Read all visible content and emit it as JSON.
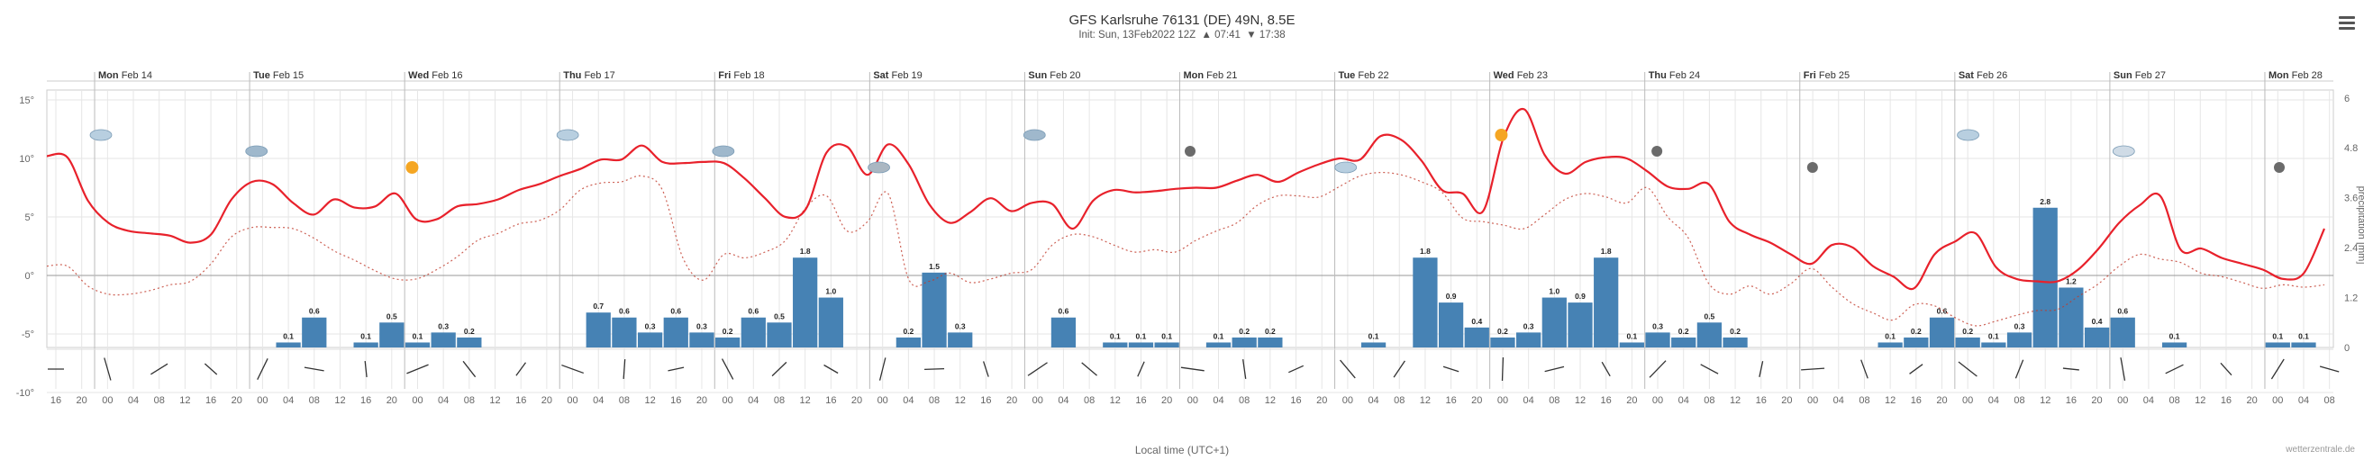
{
  "header": {
    "title": "GFS Karlsruhe 76131 (DE) 49N, 8.5E",
    "init": "Init: Sun, 13Feb2022 12Z",
    "sunrise": "07:41",
    "sunset": "17:38"
  },
  "footer": {
    "xlabel": "Local time (UTC+1)",
    "credit": "wetterzentrale.de"
  },
  "colors": {
    "temperature": "#e8212b",
    "temperature_below_zero": "#2f9bd6",
    "dewpoint": "#c0392b",
    "dewpoint_below_zero": "#6fa8dc",
    "precipitation": "#4682b4",
    "grid": "#e6e6e6"
  },
  "chart_data": {
    "type": "line",
    "days": [
      {
        "label": "Mon",
        "date": "Feb 14"
      },
      {
        "label": "Tue",
        "date": "Feb 15"
      },
      {
        "label": "Wed",
        "date": "Feb 16"
      },
      {
        "label": "Thu",
        "date": "Feb 17"
      },
      {
        "label": "Fri",
        "date": "Feb 18"
      },
      {
        "label": "Sat",
        "date": "Feb 19"
      },
      {
        "label": "Sun",
        "date": "Feb 20"
      },
      {
        "label": "Mon",
        "date": "Feb 21"
      },
      {
        "label": "Tue",
        "date": "Feb 22"
      },
      {
        "label": "Wed",
        "date": "Feb 23"
      },
      {
        "label": "Thu",
        "date": "Feb 24"
      },
      {
        "label": "Fri",
        "date": "Feb 25"
      },
      {
        "label": "Sat",
        "date": "Feb 26"
      },
      {
        "label": "Sun",
        "date": "Feb 27"
      },
      {
        "label": "Mon",
        "date": "Feb 28"
      }
    ],
    "hour_ticks": [
      "16",
      "20",
      "00",
      "04",
      "08",
      "12",
      "16",
      "20",
      "00",
      "04",
      "08",
      "12",
      "16",
      "20",
      "00",
      "04",
      "08",
      "12",
      "16",
      "20",
      "00",
      "04",
      "08",
      "12",
      "16",
      "20",
      "00",
      "04",
      "08",
      "12",
      "16",
      "20",
      "00",
      "04",
      "08",
      "12",
      "16",
      "20",
      "00",
      "04",
      "08",
      "12",
      "16",
      "20",
      "00",
      "04",
      "08",
      "12",
      "16",
      "20",
      "00",
      "04",
      "08",
      "12",
      "16",
      "20",
      "00",
      "04",
      "08",
      "12",
      "16",
      "20",
      "00",
      "04",
      "08",
      "12",
      "16",
      "20",
      "00",
      "04",
      "08",
      "12",
      "16",
      "20",
      "00",
      "04",
      "08",
      "12",
      "16",
      "20",
      "00",
      "04",
      "08",
      "12",
      "16",
      "20",
      "00",
      "04",
      "08"
    ],
    "y_left": {
      "ticks": [
        15,
        10,
        5,
        0,
        -5,
        -10
      ],
      "labels": [
        "15°",
        "10°",
        "5°",
        "0°",
        "-5°",
        "-10°"
      ],
      "range": [
        -10,
        15
      ]
    },
    "y_right": {
      "label": "precipitation [mm]",
      "ticks": [
        6,
        4.8,
        3.6,
        2.4,
        1.2,
        0
      ],
      "labels": [
        "6",
        "4.8",
        "3.6",
        "2.4",
        "1.2",
        "0"
      ]
    },
    "grid": true,
    "temperature": [
      10.2,
      10.1,
      6.4,
      4.5,
      3.8,
      3.6,
      3.4,
      2.8,
      3.5,
      6.5,
      8.0,
      7.8,
      6.2,
      5.2,
      6.5,
      5.8,
      5.9,
      7.0,
      4.8,
      4.8,
      5.9,
      6.1,
      6.5,
      7.3,
      7.8,
      8.5,
      9.1,
      9.9,
      9.9,
      11.1,
      9.7,
      9.6,
      9.7,
      9.6,
      8.3,
      6.6,
      5.0,
      5.7,
      10.5,
      11.0,
      8.6,
      11.2,
      9.5,
      6.1,
      4.5,
      5.4,
      6.6,
      5.5,
      6.2,
      6.1,
      4.0,
      6.4,
      7.3,
      7.1,
      7.2,
      7.4,
      7.5,
      7.5,
      8.1,
      8.6,
      8.0,
      8.8,
      9.5,
      10.0,
      9.9,
      11.9,
      11.6,
      9.8,
      7.3,
      7.0,
      5.5,
      11.8,
      14.2,
      10.3,
      8.7,
      9.7,
      10.1,
      10.0,
      8.9,
      7.6,
      7.4,
      7.8,
      4.6,
      3.5,
      2.8,
      1.8,
      1.0,
      2.6,
      2.4,
      0.8,
      -0.1,
      -1.1,
      1.8,
      2.9,
      3.6,
      0.7,
      -0.3,
      -0.5,
      -0.5,
      0.5,
      2.3,
      4.5,
      6.0,
      6.8,
      2.2,
      2.3,
      1.5,
      1.0,
      0.5,
      -0.3,
      0.2,
      4.0
    ],
    "dewpoint": [
      0.8,
      0.8,
      -0.9,
      -1.6,
      -1.6,
      -1.3,
      -0.8,
      -0.5,
      1.0,
      3.3,
      4.1,
      4.1,
      4.0,
      3.2,
      2.1,
      1.3,
      0.4,
      -0.3,
      -0.3,
      0.5,
      1.6,
      3.0,
      3.6,
      4.4,
      4.7,
      5.6,
      7.3,
      7.9,
      8.0,
      8.5,
      7.3,
      1.5,
      -0.4,
      1.8,
      1.5,
      2.0,
      3.0,
      5.8,
      6.8,
      3.8,
      4.6,
      7.0,
      -0.3,
      -0.5,
      0.2,
      -0.6,
      -0.3,
      0.2,
      0.5,
      2.6,
      3.5,
      3.3,
      2.6,
      2.0,
      2.2,
      2.0,
      3.0,
      3.8,
      4.5,
      6.0,
      6.8,
      6.8,
      6.7,
      7.6,
      8.5,
      8.8,
      8.6,
      8.0,
      7.1,
      4.9,
      4.6,
      4.3,
      4.0,
      5.2,
      6.5,
      7.0,
      6.7,
      6.2,
      7.5,
      5.0,
      3.2,
      -0.7,
      -1.6,
      -0.9,
      -1.6,
      -0.7,
      0.6,
      -1.0,
      -2.4,
      -3.2,
      -3.8,
      -2.5,
      -2.6,
      -3.6,
      -4.3,
      -3.9,
      -3.4,
      -3.0,
      -2.9,
      -1.8,
      -0.7,
      0.8,
      1.8,
      1.4,
      1.1,
      0.2,
      -0.1,
      -0.6,
      -1.1,
      -0.8,
      -1.0,
      -0.8
    ],
    "precip_labels": [
      "0.1",
      "0.6",
      "0.1",
      "0.5",
      "0.1",
      "0.3",
      "0.2",
      "0.7",
      "0.6",
      "0.3",
      "0.6",
      "0.3",
      "0.2",
      "0.6",
      "0.5",
      "1.8",
      "1.0",
      "0.2",
      "1.5",
      "0.3",
      "0.6",
      "0.1",
      "0.1",
      "0.1",
      "0.1",
      "0.2",
      "0.2",
      "0.1",
      "1.8",
      "0.9",
      "0.4",
      "0.2",
      "0.3",
      "1.0",
      "0.9",
      "1.8",
      "0.1",
      "0.3",
      "0.2",
      "0.5",
      "0.2",
      "0.1",
      "0.2",
      "0.6",
      "0.2",
      "0.1",
      "0.3",
      "2.8",
      "1.2",
      "0.4",
      "0.6",
      "0.1",
      "0.1",
      "0.1"
    ],
    "weather_icons": [
      "cloud",
      "rain",
      "sun",
      "cloud",
      "rain",
      "fog",
      "rain",
      "night",
      "cloud",
      "sun",
      "night",
      "night",
      "cloud",
      "snow",
      "night"
    ],
    "wind": [
      "calm",
      "light",
      "moderate"
    ]
  }
}
